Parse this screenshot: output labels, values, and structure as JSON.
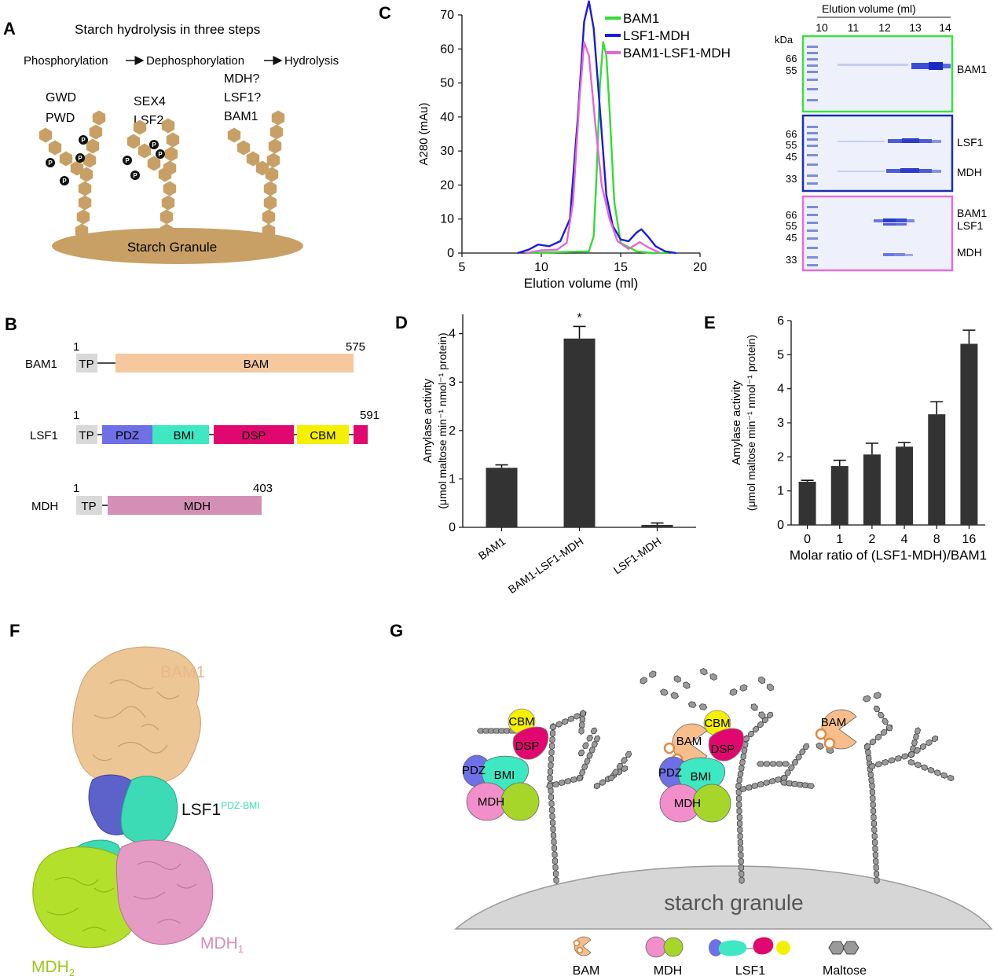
{
  "panels": {
    "a": {
      "letter": "A",
      "title": "Starch hydrolysis in three steps",
      "steps": [
        "Phosphorylation",
        "Dephosphorylation",
        "Hydrolysis"
      ],
      "enzymes1": [
        "GWD",
        "PWD"
      ],
      "enzymes2": [
        "SEX4",
        "LSF2"
      ],
      "enzymes3": [
        "MDH?",
        "LSF1?",
        "BAM1"
      ],
      "phosphate": "P",
      "granule": "Starch Granule"
    },
    "b": {
      "letter": "B",
      "proteins": [
        {
          "name": "BAM1",
          "start": "1",
          "end": "575",
          "domains": [
            "TP",
            "BAM"
          ]
        },
        {
          "name": "LSF1",
          "start": "1",
          "end": "591",
          "domains": [
            "TP",
            "PDZ",
            "BMI",
            "DSP",
            "CBM"
          ]
        },
        {
          "name": "MDH",
          "start": "1",
          "end": "403",
          "domains": [
            "TP",
            "MDH"
          ]
        }
      ]
    },
    "c": {
      "letter": "C",
      "gel_header": "Elution volume (ml)",
      "gel_fractions": [
        "10",
        "11",
        "12",
        "13",
        "14"
      ],
      "kda": "kDa",
      "gels": [
        {
          "markers": [
            "66",
            "55"
          ],
          "bands": [
            "BAM1"
          ],
          "color": "#3de03d"
        },
        {
          "markers": [
            "66",
            "55",
            "45",
            "33"
          ],
          "bands": [
            "LSF1",
            "MDH"
          ],
          "color": "#1a2fb0"
        },
        {
          "markers": [
            "66",
            "55",
            "45",
            "33"
          ],
          "bands": [
            "BAM1",
            "LSF1",
            "MDH"
          ],
          "color": "#e070d8"
        }
      ]
    },
    "d": {
      "letter": "D"
    },
    "e": {
      "letter": "E"
    },
    "f": {
      "letter": "F",
      "bam1": "BAM1",
      "lsf1": "LSF1",
      "lsf1_sup": "PDZ-BMI",
      "mdh1": "MDH",
      "mdh1_sub": "1",
      "mdh2": "MDH",
      "mdh2_sub": "2"
    },
    "g": {
      "letter": "G",
      "granule": "starch granule",
      "labels": [
        "CBM",
        "DSP",
        "PDZ",
        "BMI",
        "MDH",
        "BAM"
      ],
      "legend": [
        "BAM",
        "MDH",
        "LSF1",
        "Maltose"
      ]
    }
  },
  "chart_data": [
    {
      "type": "line",
      "xlabel": "Elution volume (ml)",
      "ylabel": "A280 (mAu)",
      "xlim": [
        5,
        20
      ],
      "ylim": [
        0,
        70
      ],
      "xticks": [
        5,
        10,
        15,
        20
      ],
      "yticks": [
        0,
        10,
        20,
        30,
        40,
        50,
        60,
        70
      ],
      "legend": "top-right",
      "series": [
        {
          "name": "BAM1",
          "color": "#33dd33",
          "x": [
            9,
            13,
            13.3,
            13.5,
            13.7,
            13.9,
            14.1,
            14.3,
            14.6,
            15,
            16,
            17,
            18
          ],
          "y": [
            0,
            0.5,
            5,
            25,
            50,
            62,
            58,
            42,
            15,
            3,
            0.5,
            0,
            0
          ]
        },
        {
          "name": "LSF1-MDH",
          "color": "#1c1cd8",
          "x": [
            8.5,
            9.2,
            9.8,
            10.5,
            11.2,
            11.8,
            12.3,
            12.7,
            13,
            13.3,
            13.7,
            14.1,
            14.5,
            15,
            15.5,
            16,
            16.3,
            16.7,
            17.2,
            17.8,
            18.5
          ],
          "y": [
            0,
            1,
            2.5,
            2,
            3.5,
            10,
            40,
            68,
            74,
            66,
            42,
            17,
            8,
            4,
            3.5,
            6,
            7,
            5,
            2,
            0.5,
            0
          ]
        },
        {
          "name": "BAM1-LSF1-MDH",
          "color": "#e466d6",
          "x": [
            9,
            10,
            11,
            11.6,
            12,
            12.4,
            12.7,
            13,
            13.4,
            13.8,
            14.3,
            14.8,
            15.5,
            16.2,
            16.8,
            17.5
          ],
          "y": [
            0,
            0.8,
            1,
            3,
            15,
            45,
            62,
            58,
            38,
            20,
            10,
            3.5,
            1.2,
            3.2,
            1.5,
            0
          ]
        }
      ]
    },
    {
      "type": "bar",
      "ylabel": "Amylase activity",
      "ylabel2": "(μmol maltose min⁻¹ nmol⁻¹ protein)",
      "categories": [
        "BAM1",
        "BAM1-LSF1-MDH",
        "LSF1-MDH"
      ],
      "values": [
        1.23,
        3.9,
        0.05
      ],
      "errors": [
        0.06,
        0.25,
        0.04
      ],
      "significance": [
        "",
        "*",
        ""
      ],
      "ylim": [
        0,
        4.4
      ],
      "yticks": [
        0,
        1,
        2,
        3,
        4
      ]
    },
    {
      "type": "bar",
      "xlabel": "Molar ratio of (LSF1-MDH)/BAM1",
      "ylabel": "Amylase activity",
      "ylabel2": "(μmol maltose min⁻¹ nmol⁻¹ protein)",
      "categories": [
        "0",
        "1",
        "2",
        "4",
        "8",
        "16"
      ],
      "values": [
        1.27,
        1.73,
        2.07,
        2.3,
        3.25,
        5.32
      ],
      "errors": [
        0.04,
        0.17,
        0.33,
        0.12,
        0.37,
        0.4
      ],
      "ylim": [
        0,
        6
      ],
      "yticks": [
        0,
        1,
        2,
        3,
        4,
        5,
        6
      ]
    }
  ]
}
